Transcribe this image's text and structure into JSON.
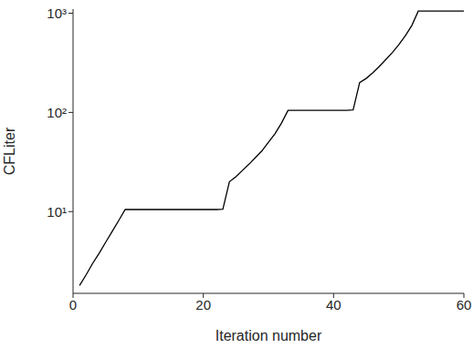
{
  "chart_data": {
    "type": "line",
    "xlabel": "Iteration number",
    "ylabel": "CFLiter",
    "log": "y",
    "color": "#000000",
    "x": [
      1,
      2,
      3,
      4,
      5,
      6,
      7,
      8,
      9,
      10,
      11,
      12,
      13,
      14,
      15,
      16,
      17,
      18,
      19,
      20,
      21,
      22,
      23,
      24,
      25,
      26,
      27,
      28,
      29,
      30,
      31,
      32,
      33,
      34,
      35,
      36,
      37,
      38,
      39,
      40,
      41,
      42,
      43,
      44,
      45,
      46,
      47,
      48,
      49,
      50,
      51,
      52,
      53,
      54,
      55,
      56,
      57,
      58,
      59,
      60
    ],
    "values": [
      1.8,
      2.3,
      3.0,
      3.8,
      4.9,
      6.3,
      8.1,
      10.5,
      10.5,
      10.5,
      10.5,
      10.5,
      10.5,
      10.5,
      10.5,
      10.5,
      10.5,
      10.5,
      10.5,
      10.5,
      10.5,
      10.5,
      10.6,
      20,
      22.5,
      26,
      30,
      35,
      41,
      50,
      61,
      78,
      105,
      105,
      105,
      105,
      105,
      105,
      105,
      105,
      105,
      105,
      106,
      200,
      220,
      250,
      290,
      340,
      400,
      480,
      590,
      750,
      1050,
      1050,
      1050,
      1050,
      1050,
      1050,
      1050,
      1050
    ],
    "xlim": [
      0,
      60
    ],
    "xticks": [
      0,
      20,
      40,
      60
    ],
    "ylim": [
      1.5,
      1100
    ],
    "yticks": [
      {
        "value": 10,
        "label": "10¹"
      },
      {
        "value": 100,
        "label": "10²"
      },
      {
        "value": 1000,
        "label": "10³"
      }
    ]
  }
}
